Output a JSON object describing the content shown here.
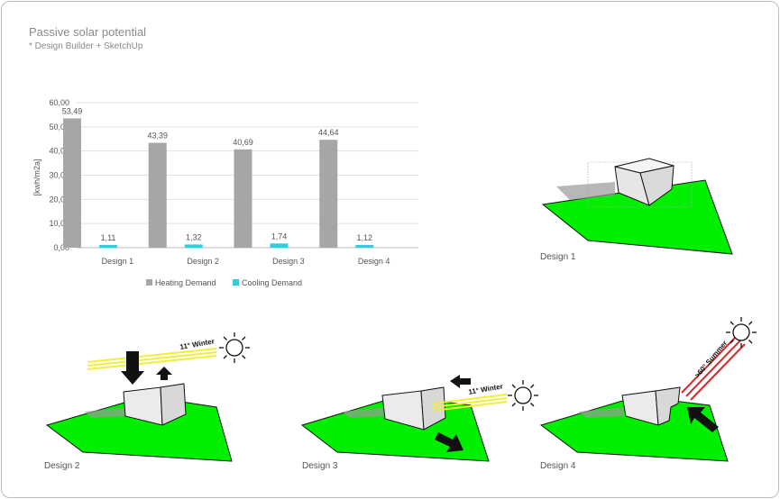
{
  "title": "Passive solar potential",
  "subtitle": "* Design Builder + SketchUp",
  "chart_data": {
    "type": "bar",
    "ylabel": "[kwh/m2a]",
    "ylim": [
      0,
      60
    ],
    "yticks": [
      "0,00",
      "10,00",
      "20,00",
      "30,00",
      "40,00",
      "50,00",
      "60,00"
    ],
    "categories": [
      "Design 1",
      "Design 2",
      "Design 3",
      "Design 4"
    ],
    "series": [
      {
        "name": "Heating Demand",
        "color": "#a6a6a6",
        "values": [
          53.49,
          43.39,
          40.69,
          44.64
        ],
        "labels": [
          "53,49",
          "43,39",
          "40,69",
          "44,64"
        ]
      },
      {
        "name": "Cooling Demand",
        "color": "#33ccdd",
        "values": [
          1.11,
          1.32,
          1.74,
          1.12
        ],
        "labels": [
          "1,11",
          "1,32",
          "1,74",
          "1,12"
        ]
      }
    ],
    "grid": true,
    "legend": "bottom"
  },
  "designs": [
    {
      "label": "Design 1"
    },
    {
      "label": "Design 2",
      "annotation": "11° Winter"
    },
    {
      "label": "Design 3",
      "annotation": "11° Winter"
    },
    {
      "label": "Design 4",
      "annotation": ">60° Summer"
    }
  ],
  "colors": {
    "ground": "#00ee00",
    "building": "#ebebeb",
    "winter_ray": "#f2ee3a",
    "summer_ray": "#d42a2a"
  }
}
